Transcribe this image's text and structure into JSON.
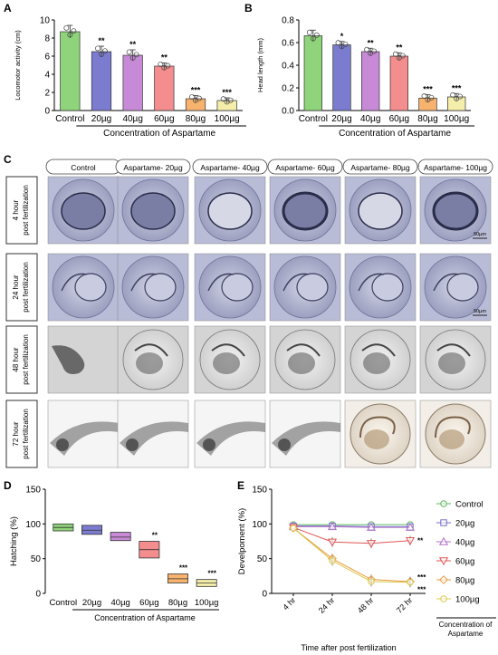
{
  "panels": {
    "A": {
      "letter": "A",
      "ylabel": "Locomotor activity (cm)",
      "xlabel": "Concentration of Aspartame",
      "yticks": [
        "0",
        "2",
        "4",
        "6",
        "8",
        "10"
      ],
      "ylim": [
        0,
        10
      ],
      "categories": [
        "Control",
        "20µg",
        "40µg",
        "60µg",
        "80µg",
        "100µg"
      ],
      "values": [
        8.7,
        6.5,
        6.1,
        4.9,
        1.3,
        1.1
      ],
      "errors": [
        0.7,
        0.6,
        0.6,
        0.35,
        0.35,
        0.3
      ],
      "significance": [
        "",
        "**",
        "**",
        "**",
        "***",
        "***"
      ],
      "colors": [
        "#8fd47a",
        "#7b7bd0",
        "#c68ad6",
        "#f48d8d",
        "#f7b26e",
        "#f4eeaa"
      ]
    },
    "B": {
      "letter": "B",
      "ylabel": "Head length (mm)",
      "xlabel": "Concentration of Aspartame",
      "yticks": [
        "0.0",
        "0.2",
        "0.4",
        "0.6",
        "0.8"
      ],
      "ylim": [
        0,
        0.8
      ],
      "categories": [
        "Control",
        "20µg",
        "40µg",
        "60µg",
        "80µg",
        "100µg"
      ],
      "values": [
        0.66,
        0.58,
        0.52,
        0.48,
        0.11,
        0.12
      ],
      "errors": [
        0.05,
        0.03,
        0.03,
        0.03,
        0.03,
        0.03
      ],
      "significance": [
        "",
        "*",
        "**",
        "**",
        "***",
        "***"
      ],
      "colors": [
        "#8fd47a",
        "#7b7bd0",
        "#c68ad6",
        "#f48d8d",
        "#f7b26e",
        "#f4eeaa"
      ]
    },
    "C": {
      "letter": "C",
      "columns": [
        "Control",
        "Aspartame- 20µg",
        "Aspartame- 40µg",
        "Aspartame- 60µg",
        "Aspartame- 80µg",
        "Aspartame- 100µg"
      ],
      "rows": [
        "4 hour post fertilization",
        "24 hour post fertilization",
        "48 hour post fertilization",
        "72 hour post fertilization"
      ],
      "scale_bar": "50µm"
    },
    "D": {
      "letter": "D",
      "ylabel": "Hatching (%)",
      "xlabel": "Concentration of Aspartame",
      "yticks": [
        "0",
        "50",
        "100",
        "150"
      ],
      "ylim": [
        0,
        150
      ],
      "categories": [
        "Control",
        "20µg",
        "40µg",
        "60µg",
        "80µg",
        "100µg"
      ],
      "box_low": [
        90,
        85,
        76,
        51,
        15,
        10
      ],
      "box_high": [
        100,
        98,
        88,
        75,
        28,
        20
      ],
      "box_mid": [
        95,
        91,
        81,
        63,
        21,
        15
      ],
      "significance": [
        "",
        "",
        "",
        "**",
        "***",
        "***"
      ],
      "colors": [
        "#8fd47a",
        "#7b7bd0",
        "#c68ad6",
        "#f48d8d",
        "#f7b26e",
        "#f4eeaa"
      ]
    },
    "E": {
      "letter": "E",
      "ylabel": "Develpoment (%)",
      "xlabel": "Time after post fertilization",
      "x": [
        "4 hr",
        "24 hr",
        "48 hr",
        "72 hr"
      ],
      "yticks": [
        "0",
        "50",
        "100",
        "150"
      ],
      "ylim": [
        0,
        150
      ],
      "legend_title": "Concentration of Aspartame",
      "series": [
        {
          "name": "Control",
          "values": [
            99,
            99,
            99,
            99
          ],
          "color": "#5cb85c",
          "marker": "circle"
        },
        {
          "name": "20µg",
          "values": [
            97,
            97,
            96,
            96
          ],
          "color": "#6f6fc8",
          "marker": "square"
        },
        {
          "name": "40µg",
          "values": [
            96,
            96,
            95,
            95
          ],
          "color": "#b070c8",
          "marker": "triangle"
        },
        {
          "name": "60µg",
          "values": [
            95,
            74,
            72,
            76
          ],
          "color": "#e05555",
          "marker": "triangle-down"
        },
        {
          "name": "80µg",
          "values": [
            94,
            50,
            20,
            17
          ],
          "color": "#e89a3c",
          "marker": "diamond"
        },
        {
          "name": "100µg",
          "values": [
            94,
            47,
            17,
            16
          ],
          "color": "#d9c94a",
          "marker": "circle"
        }
      ],
      "significance": [
        "**",
        "***",
        "***"
      ]
    }
  }
}
